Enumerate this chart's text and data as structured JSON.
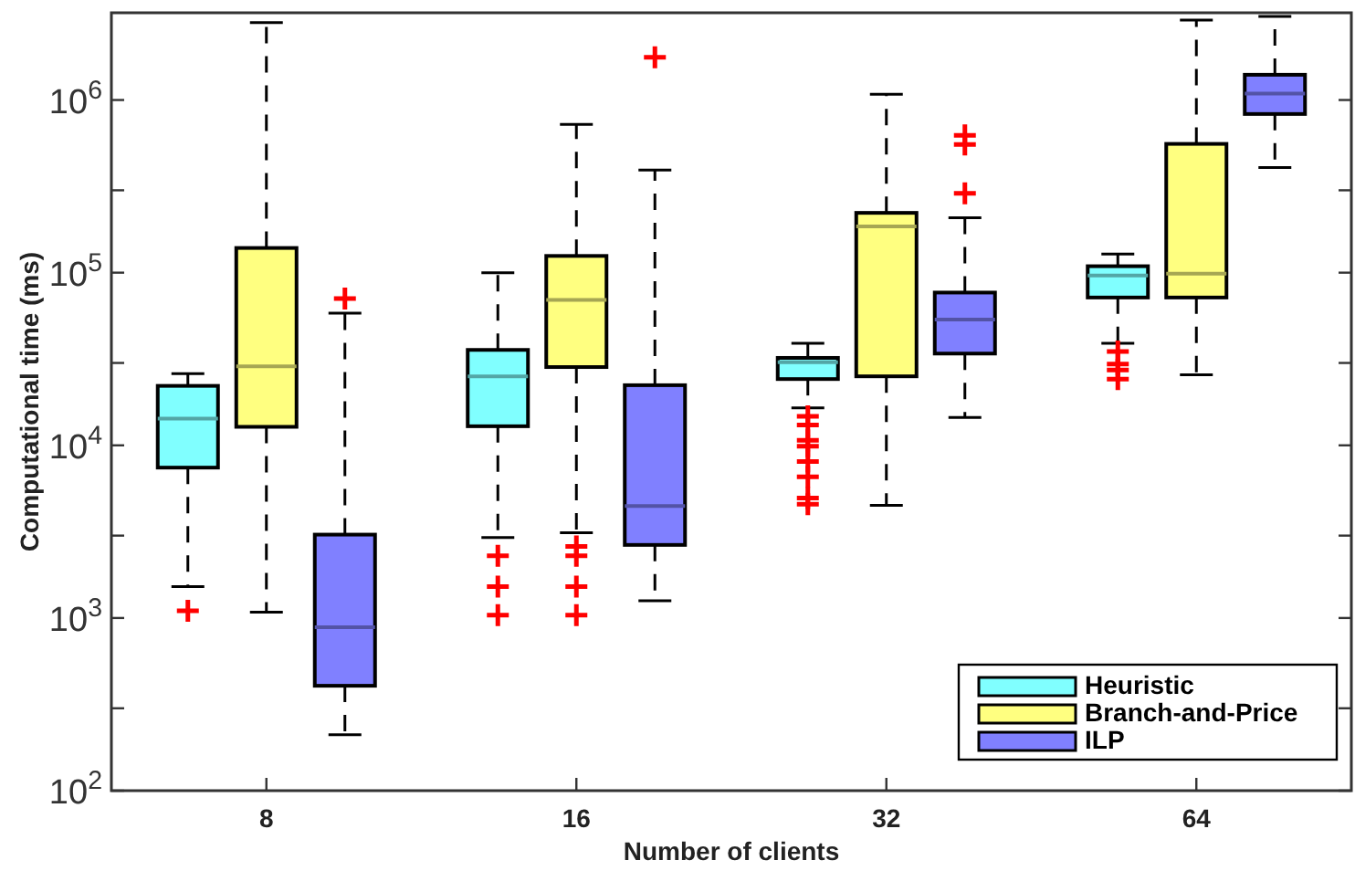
{
  "chart_data": {
    "type": "box",
    "xlabel": "Number of clients",
    "ylabel": "Computational time (ms)",
    "categories": [
      "8",
      "16",
      "32",
      "64"
    ],
    "log": true,
    "ylim": [
      100,
      3200000
    ],
    "yticks": [
      {
        "value": 100,
        "label": "10$^{2}$"
      },
      {
        "value": 300,
        "label": null
      },
      {
        "value": 1000,
        "label": "10$^{3}$"
      },
      {
        "value": 3000,
        "label": null
      },
      {
        "value": 10000,
        "label": "10$^{4}$"
      },
      {
        "value": 30000,
        "label": null
      },
      {
        "value": 100000,
        "label": "10$^{5}$"
      },
      {
        "value": 300000,
        "label": null
      },
      {
        "value": 1000000,
        "label": "10$^{6}$"
      }
    ],
    "legend": "bottom right",
    "line_style": "dashed",
    "grid": false,
    "series": [
      {
        "name": "Heuristic",
        "color": "#80ffff",
        "boxes": [
          {
            "low": 1520,
            "q1": 7430,
            "median": 14300,
            "q3": 22100,
            "high": 26000,
            "outliers": [
              1100
            ]
          },
          {
            "low": 2920,
            "q1": 12900,
            "median": 25100,
            "q3": 35700,
            "high": 100000,
            "outliers": [
              2290,
              1520,
              1040
            ]
          },
          {
            "low": 16500,
            "q1": 24200,
            "median": 30300,
            "q3": 32100,
            "high": 39000,
            "outliers": [
              14700,
              13100,
              10700,
              9880,
              8070,
              6570,
              4950,
              4560
            ]
          },
          {
            "low": 39000,
            "q1": 71800,
            "median": 96200,
            "q3": 109000,
            "high": 128000,
            "outliers": [
              34900,
              29600,
              27300,
              24200
            ]
          }
        ]
      },
      {
        "name": "Branch-and-Price",
        "color": "#ffff80",
        "boxes": [
          {
            "low": 1080,
            "q1": 12800,
            "median": 28700,
            "q3": 139000,
            "high": 2810000
          },
          {
            "low": 3120,
            "q1": 28400,
            "median": 69500,
            "q3": 125000,
            "high": 723000,
            "outliers": [
              2600,
              2290,
              1520,
              1040
            ]
          },
          {
            "low": 4490,
            "q1": 25100,
            "median": 185000,
            "q3": 222000,
            "high": 1080000
          },
          {
            "low": 25600,
            "q1": 71800,
            "median": 98600,
            "q3": 557000,
            "high": 2900000
          }
        ]
      },
      {
        "name": "ILP",
        "color": "#8080ff",
        "boxes": [
          {
            "low": 211,
            "q1": 405,
            "median": 883,
            "q3": 3040,
            "high": 58200,
            "outliers": [
              70800
            ]
          },
          {
            "low": 1260,
            "q1": 2650,
            "median": 4450,
            "q3": 22300,
            "high": 393000,
            "outliers": [
              1770000
            ]
          },
          {
            "low": 14500,
            "q1": 34000,
            "median": 53500,
            "q3": 76700,
            "high": 208000,
            "outliers": [
              625000,
              553000,
              288000
            ]
          },
          {
            "low": 406000,
            "q1": 830000,
            "median": 1090000,
            "q3": 1400000,
            "high": 3050000
          }
        ]
      }
    ]
  }
}
